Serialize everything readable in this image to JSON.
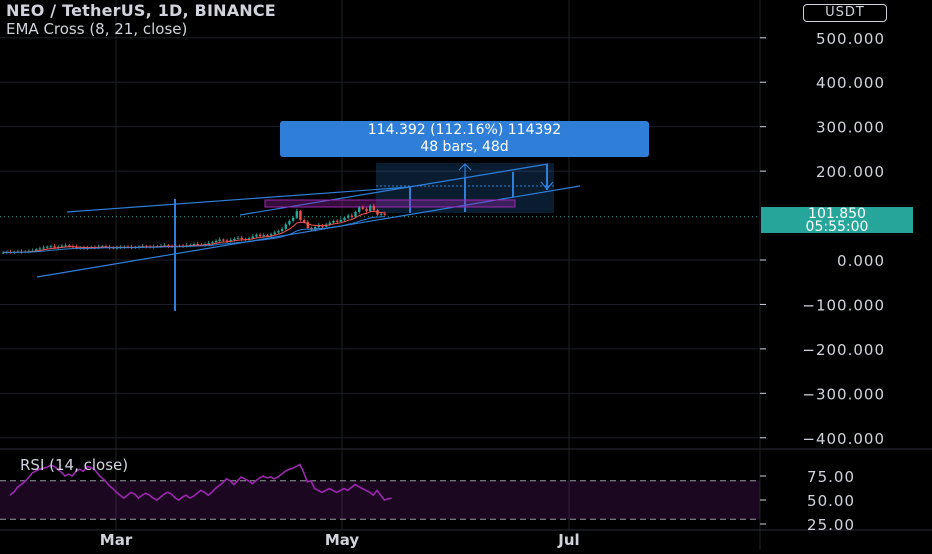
{
  "header": {
    "title": "NEO / TetherUS, 1D, BINANCE",
    "indicator": "EMA Cross (8, 21, close)"
  },
  "currency_button": {
    "label": "USDT"
  },
  "price_axis": {
    "labels": [
      "500.000",
      "400.000",
      "300.000",
      "200.000",
      "0.000",
      "−100.000",
      "−200.000",
      "−300.000",
      "−400.000"
    ],
    "values": [
      500,
      400,
      300,
      200,
      0,
      -100,
      -200,
      -300,
      -400
    ]
  },
  "last_price": {
    "value": "101.850",
    "countdown": "05:55:00",
    "color": "#26a69a"
  },
  "measure_tool": {
    "line1": "114.392 (112.16%) 114392",
    "line2": "48 bars, 48d",
    "color": "#2f7fd9"
  },
  "rsi": {
    "label": "RSI (14, close)",
    "axis_labels": [
      "75.00",
      "50.00",
      "25.00"
    ],
    "upper_band": 70,
    "lower_band": 30,
    "color": "#9c27b0",
    "values": [
      55,
      58,
      63,
      66,
      69,
      73,
      78,
      80,
      82,
      83,
      84,
      86,
      85,
      82,
      79,
      75,
      77,
      75,
      80,
      82,
      80,
      85,
      84,
      82,
      77,
      73,
      70,
      65,
      62,
      58,
      55,
      52,
      55,
      58,
      56,
      52,
      55,
      57,
      55,
      52,
      50,
      53,
      56,
      58,
      56,
      52,
      50,
      53,
      55,
      52,
      54,
      57,
      60,
      58,
      55,
      58,
      62,
      65,
      68,
      72,
      70,
      66,
      70,
      74,
      72,
      70,
      67,
      70,
      73,
      75,
      73,
      74,
      72,
      74,
      77,
      80,
      82,
      83,
      85,
      87,
      79,
      69,
      70,
      62,
      60,
      58,
      60,
      62,
      60,
      58,
      60,
      62,
      60,
      63,
      66,
      64,
      62,
      60,
      58,
      55,
      60,
      55,
      50,
      51,
      52
    ]
  },
  "time_axis": {
    "labels": [
      "Mar",
      "May",
      "Jul"
    ]
  },
  "chart_data": {
    "type": "candlestick",
    "symbol": "NEO / TetherUS",
    "interval": "1D",
    "exchange": "BINANCE",
    "ylim": [
      -430,
      540
    ],
    "last_close": 101.85,
    "ema_periods": [
      8,
      21
    ],
    "colors": {
      "up": "#26a69a",
      "down": "#ef5350",
      "drawing": "#2f7fd9",
      "grid": "#1c1f26"
    },
    "closes": [
      17,
      18,
      17,
      18,
      19,
      18,
      19,
      20,
      21,
      24,
      26,
      28,
      30,
      31,
      28,
      30,
      32,
      33,
      31,
      30,
      27,
      28,
      26,
      27,
      29,
      28,
      30,
      31,
      29,
      28,
      27,
      28,
      29,
      30,
      29,
      28,
      29,
      30,
      31,
      30,
      29,
      30,
      31,
      32,
      33,
      31,
      30,
      31,
      32,
      31,
      33,
      34,
      36,
      35,
      34,
      36,
      38,
      40,
      43,
      46,
      44,
      42,
      45,
      48,
      50,
      47,
      46,
      49,
      53,
      57,
      54,
      56,
      55,
      58,
      62,
      65,
      70,
      80,
      88,
      95,
      110,
      90,
      85,
      72,
      68,
      74,
      78,
      75,
      80,
      84,
      88,
      86,
      90,
      95,
      100,
      97,
      108,
      118,
      115,
      110,
      122,
      112,
      102,
      104,
      101.85
    ]
  }
}
